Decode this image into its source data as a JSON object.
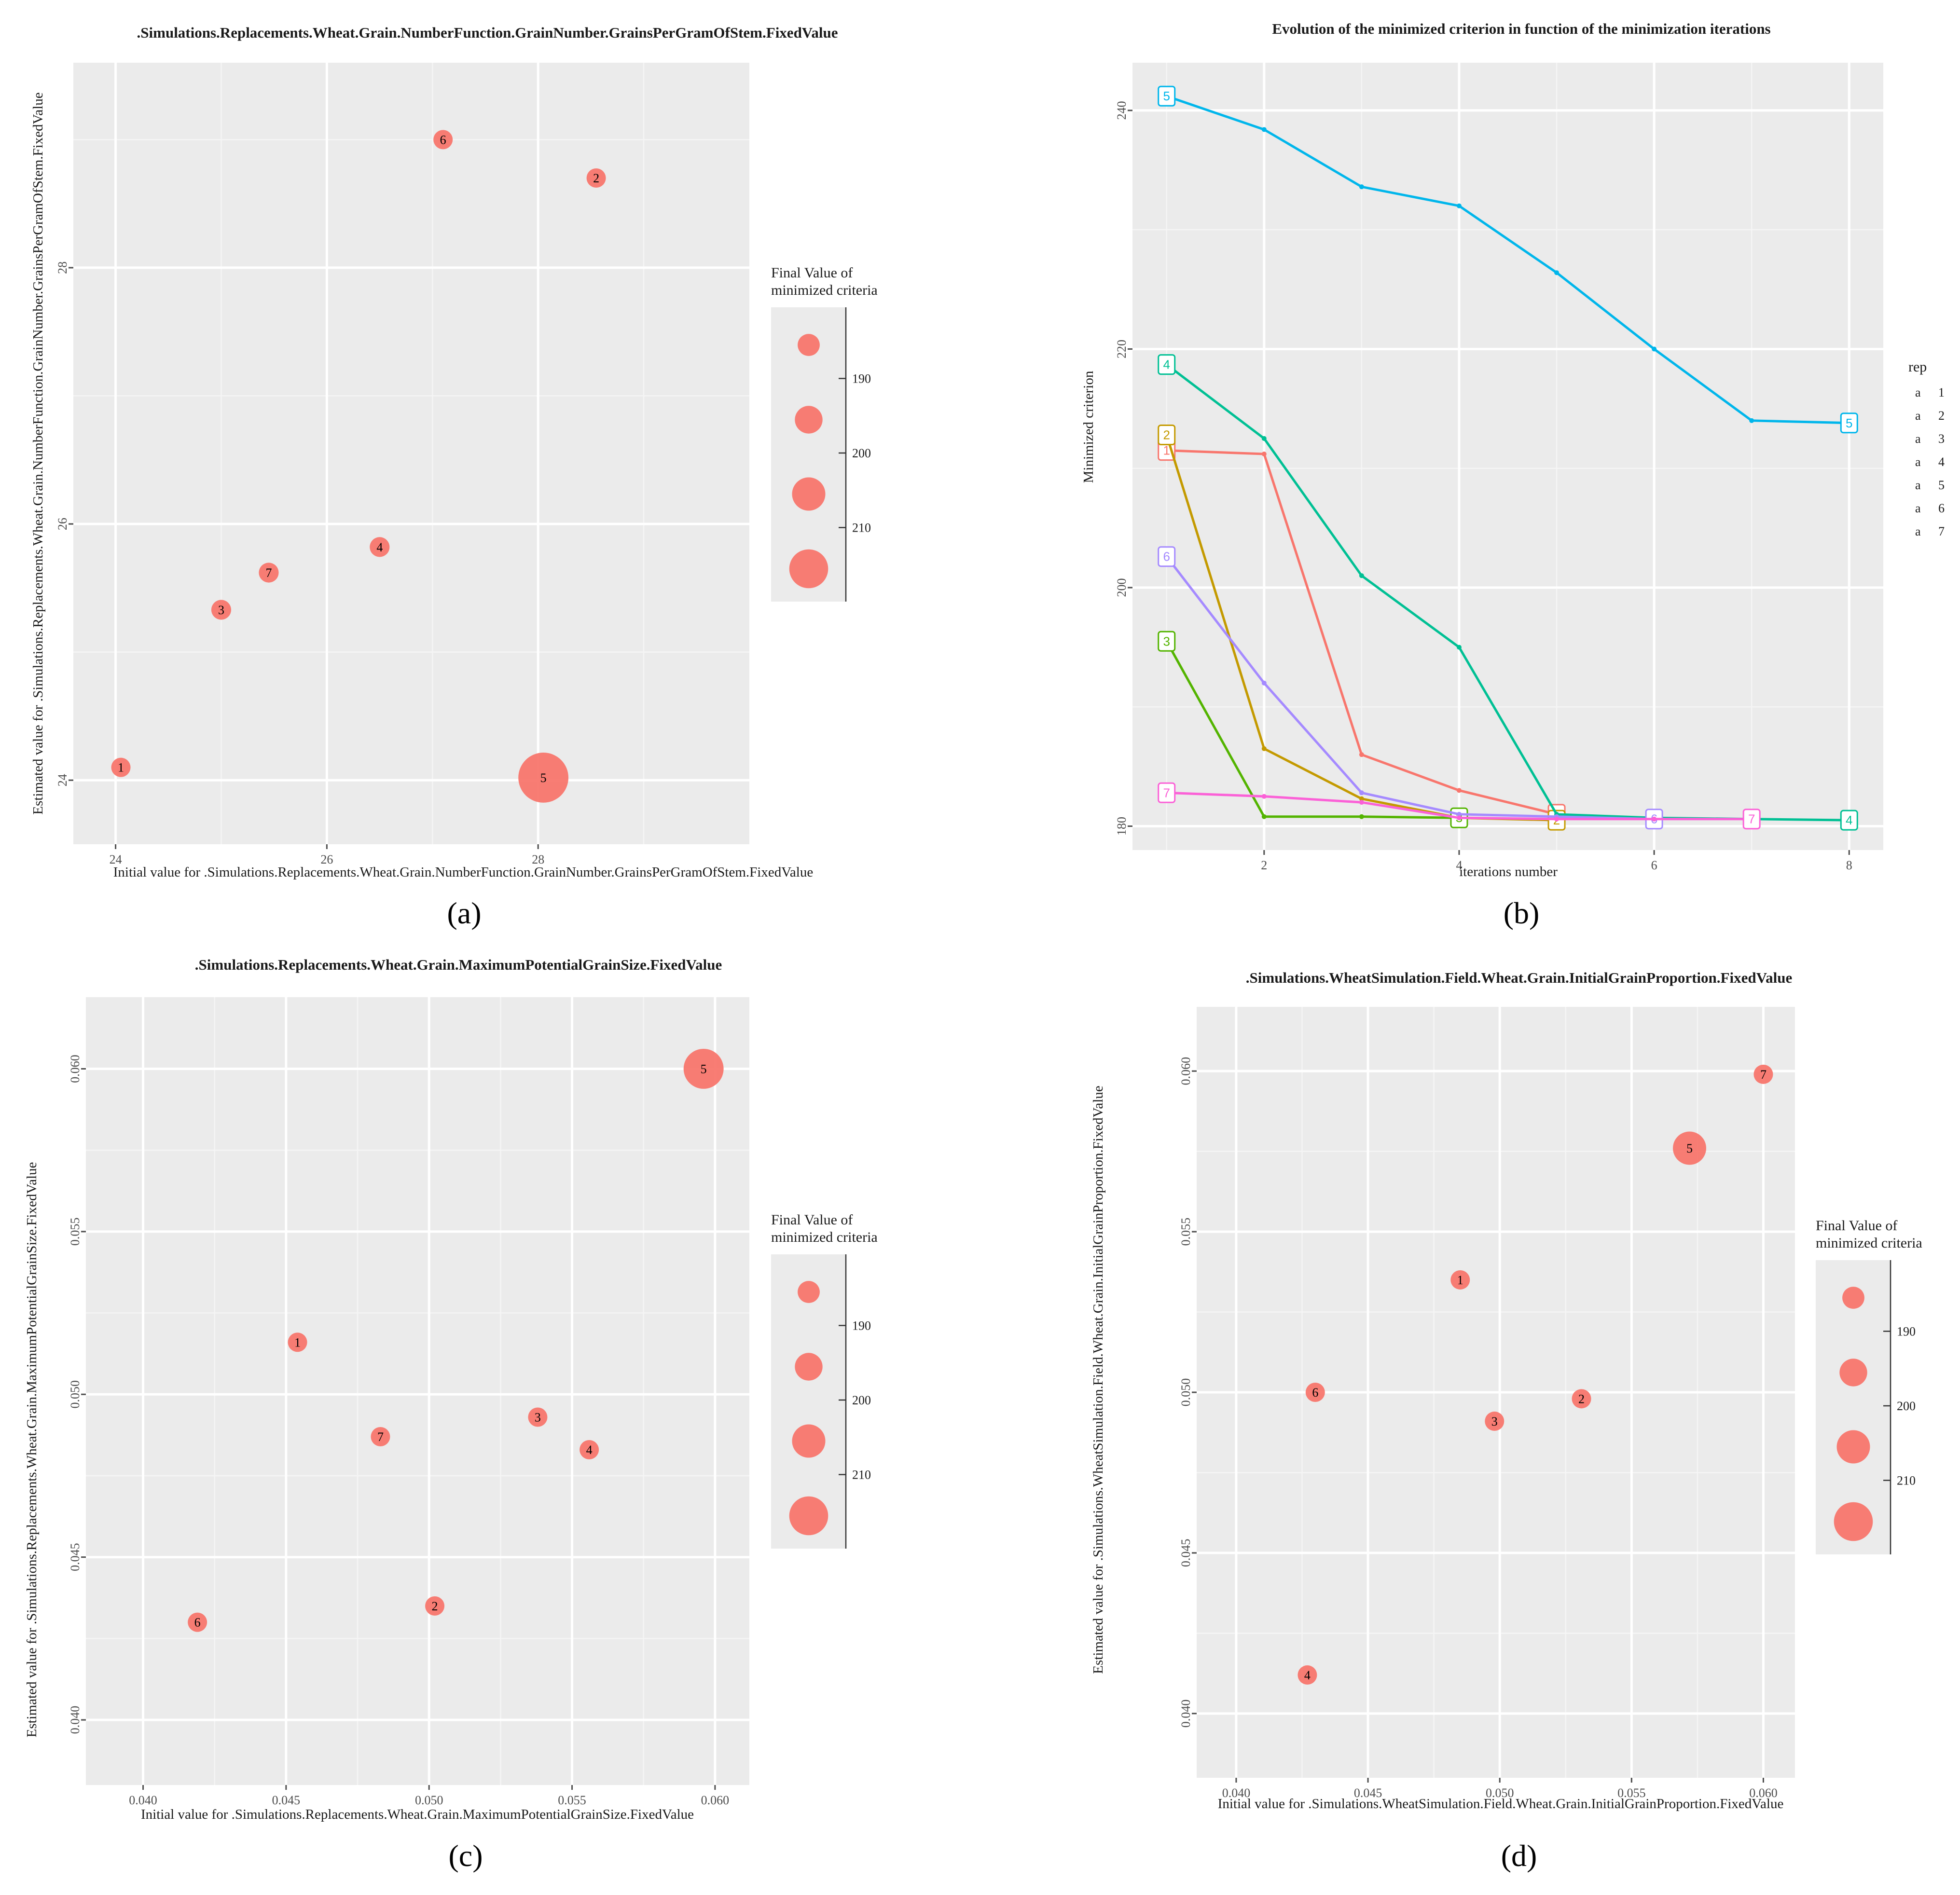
{
  "panels": [
    "(a)",
    "(b)",
    "(c)",
    "(d)"
  ],
  "chart_data": [
    {
      "id": "a",
      "type": "scatter",
      "title": ".Simulations.Replacements.Wheat.Grain.NumberFunction.GrainNumber.GrainsPerGramOfStem.FixedValue",
      "xlabel": "Initial value for .Simulations.Replacements.Wheat.Grain.NumberFunction.GrainNumber.GrainsPerGramOfStem.FixedValue",
      "ylabel": "Estimated value for .Simulations.Replacements.Wheat.Grain.NumberFunction.GrainNumber.GrainsPerGramOfStem.FixedValue",
      "xlim": [
        23.6,
        30.0
      ],
      "ylim": [
        23.5,
        29.6
      ],
      "xticks": [
        24,
        26,
        28
      ],
      "xticklabels": [
        "24",
        "26",
        "28"
      ],
      "yticks": [
        24,
        26,
        28
      ],
      "yticklabels": [
        "24",
        "26",
        "28"
      ],
      "points": [
        {
          "label": "1",
          "x": 24.05,
          "y": 24.1,
          "size": 185
        },
        {
          "label": "2",
          "x": 28.55,
          "y": 28.7,
          "size": 185
        },
        {
          "label": "3",
          "x": 25.0,
          "y": 25.33,
          "size": 186
        },
        {
          "label": "4",
          "x": 26.5,
          "y": 25.82,
          "size": 186
        },
        {
          "label": "5",
          "x": 28.05,
          "y": 24.02,
          "size": 240
        },
        {
          "label": "6",
          "x": 27.1,
          "y": 29.0,
          "size": 185
        },
        {
          "label": "7",
          "x": 25.45,
          "y": 25.62,
          "size": 186
        }
      ],
      "legend": {
        "title": [
          "Final Value of",
          "minimized criteria"
        ],
        "labels": [
          "190",
          "200",
          "210"
        ]
      }
    },
    {
      "id": "b",
      "type": "line",
      "title": "Evolution of the minimized criterion in function of the minimization iterations",
      "xlabel": "iterations number",
      "ylabel": "Minimized criterion",
      "xlim": [
        0.65,
        8.35
      ],
      "ylim": [
        178,
        244
      ],
      "xticks": [
        2,
        4,
        6,
        8
      ],
      "xticklabels": [
        "2",
        "4",
        "6",
        "8"
      ],
      "yticks": [
        180,
        200,
        220,
        240
      ],
      "yticklabels": [
        "180",
        "200",
        "220",
        "240"
      ],
      "legend": {
        "title": "rep",
        "glyph": "a"
      },
      "series": [
        {
          "name": "1",
          "color": "#F8766D",
          "x": [
            1,
            2,
            3,
            4,
            5
          ],
          "y": [
            211.5,
            211.2,
            186.0,
            183.0,
            181.0
          ]
        },
        {
          "name": "2",
          "color": "#C49A00",
          "x": [
            1,
            2,
            3,
            4,
            5
          ],
          "y": [
            212.8,
            186.5,
            182.3,
            180.7,
            180.5
          ]
        },
        {
          "name": "3",
          "color": "#53B400",
          "x": [
            1,
            2,
            3,
            4
          ],
          "y": [
            195.5,
            180.8,
            180.8,
            180.7
          ]
        },
        {
          "name": "4",
          "color": "#00C094",
          "x": [
            1,
            2,
            3,
            4,
            5,
            6,
            7,
            8
          ],
          "y": [
            218.7,
            212.5,
            201.0,
            195.0,
            181.0,
            180.7,
            180.6,
            180.5
          ]
        },
        {
          "name": "5",
          "color": "#00B6EB",
          "x": [
            1,
            2,
            3,
            4,
            5,
            6,
            7,
            8
          ],
          "y": [
            241.2,
            238.4,
            233.6,
            232.0,
            226.4,
            220.0,
            214.0,
            213.8
          ]
        },
        {
          "name": "6",
          "color": "#A58AFF",
          "x": [
            1,
            2,
            3,
            4,
            5,
            6
          ],
          "y": [
            202.6,
            192.0,
            182.8,
            181.0,
            180.8,
            180.6
          ]
        },
        {
          "name": "7",
          "color": "#FB61D7",
          "x": [
            1,
            2,
            3,
            4,
            5,
            6,
            7
          ],
          "y": [
            182.8,
            182.5,
            182.0,
            180.7,
            180.6,
            180.6,
            180.6
          ]
        }
      ]
    },
    {
      "id": "c",
      "type": "scatter",
      "title": ".Simulations.Replacements.Wheat.Grain.MaximumPotentialGrainSize.FixedValue",
      "xlabel": "Initial value for .Simulations.Replacements.Wheat.Grain.MaximumPotentialGrainSize.FixedValue",
      "ylabel": "Estimated value for .Simulations.Replacements.Wheat.Grain.MaximumPotentialGrainSize.FixedValue",
      "xlim": [
        0.038,
        0.0612
      ],
      "ylim": [
        0.038,
        0.0622
      ],
      "xticks": [
        0.04,
        0.045,
        0.05,
        0.055,
        0.06
      ],
      "xticklabels": [
        "0.040",
        "0.045",
        "0.050",
        "0.055",
        "0.060"
      ],
      "yticks": [
        0.04,
        0.045,
        0.05,
        0.055,
        0.06
      ],
      "yticklabels": [
        "0.040",
        "0.045",
        "0.050",
        "0.055",
        "0.060"
      ],
      "points": [
        {
          "label": "1",
          "x": 0.0454,
          "y": 0.0516,
          "size": 185
        },
        {
          "label": "2",
          "x": 0.0502,
          "y": 0.0435,
          "size": 185
        },
        {
          "label": "3",
          "x": 0.0538,
          "y": 0.0493,
          "size": 185
        },
        {
          "label": "4",
          "x": 0.0556,
          "y": 0.0483,
          "size": 185
        },
        {
          "label": "5",
          "x": 0.0596,
          "y": 0.06,
          "size": 222
        },
        {
          "label": "6",
          "x": 0.0419,
          "y": 0.043,
          "size": 185
        },
        {
          "label": "7",
          "x": 0.0483,
          "y": 0.0487,
          "size": 185
        }
      ],
      "legend": {
        "title": [
          "Final Value of",
          "minimized criteria"
        ],
        "labels": [
          "190",
          "200",
          "210"
        ]
      }
    },
    {
      "id": "d",
      "type": "scatter",
      "title": ".Simulations.WheatSimulation.Field.Wheat.Grain.InitialGrainProportion.FixedValue",
      "xlabel": "Initial value for .Simulations.WheatSimulation.Field.Wheat.Grain.InitialGrainProportion.FixedValue",
      "ylabel": "Estimated value for .Simulations.WheatSimulation.Field.Wheat.Grain.InitialGrainProportion.FixedValue",
      "xlim": [
        0.0385,
        0.0612
      ],
      "ylim": [
        0.038,
        0.062
      ],
      "xticks": [
        0.04,
        0.045,
        0.05,
        0.055,
        0.06
      ],
      "xticklabels": [
        "0.040",
        "0.045",
        "0.050",
        "0.055",
        "0.060"
      ],
      "yticks": [
        0.04,
        0.045,
        0.05,
        0.055,
        0.06
      ],
      "yticklabels": [
        "0.040",
        "0.045",
        "0.050",
        "0.055",
        "0.060"
      ],
      "points": [
        {
          "label": "1",
          "x": 0.0485,
          "y": 0.0535,
          "size": 185
        },
        {
          "label": "2",
          "x": 0.0531,
          "y": 0.0498,
          "size": 185
        },
        {
          "label": "3",
          "x": 0.0498,
          "y": 0.0491,
          "size": 185
        },
        {
          "label": "4",
          "x": 0.0427,
          "y": 0.0412,
          "size": 185
        },
        {
          "label": "5",
          "x": 0.0572,
          "y": 0.0576,
          "size": 210
        },
        {
          "label": "6",
          "x": 0.043,
          "y": 0.05,
          "size": 185
        },
        {
          "label": "7",
          "x": 0.06,
          "y": 0.0599,
          "size": 185
        }
      ],
      "legend": {
        "title": [
          "Final Value of",
          "minimized criteria"
        ],
        "labels": [
          "190",
          "200",
          "210"
        ]
      }
    }
  ]
}
